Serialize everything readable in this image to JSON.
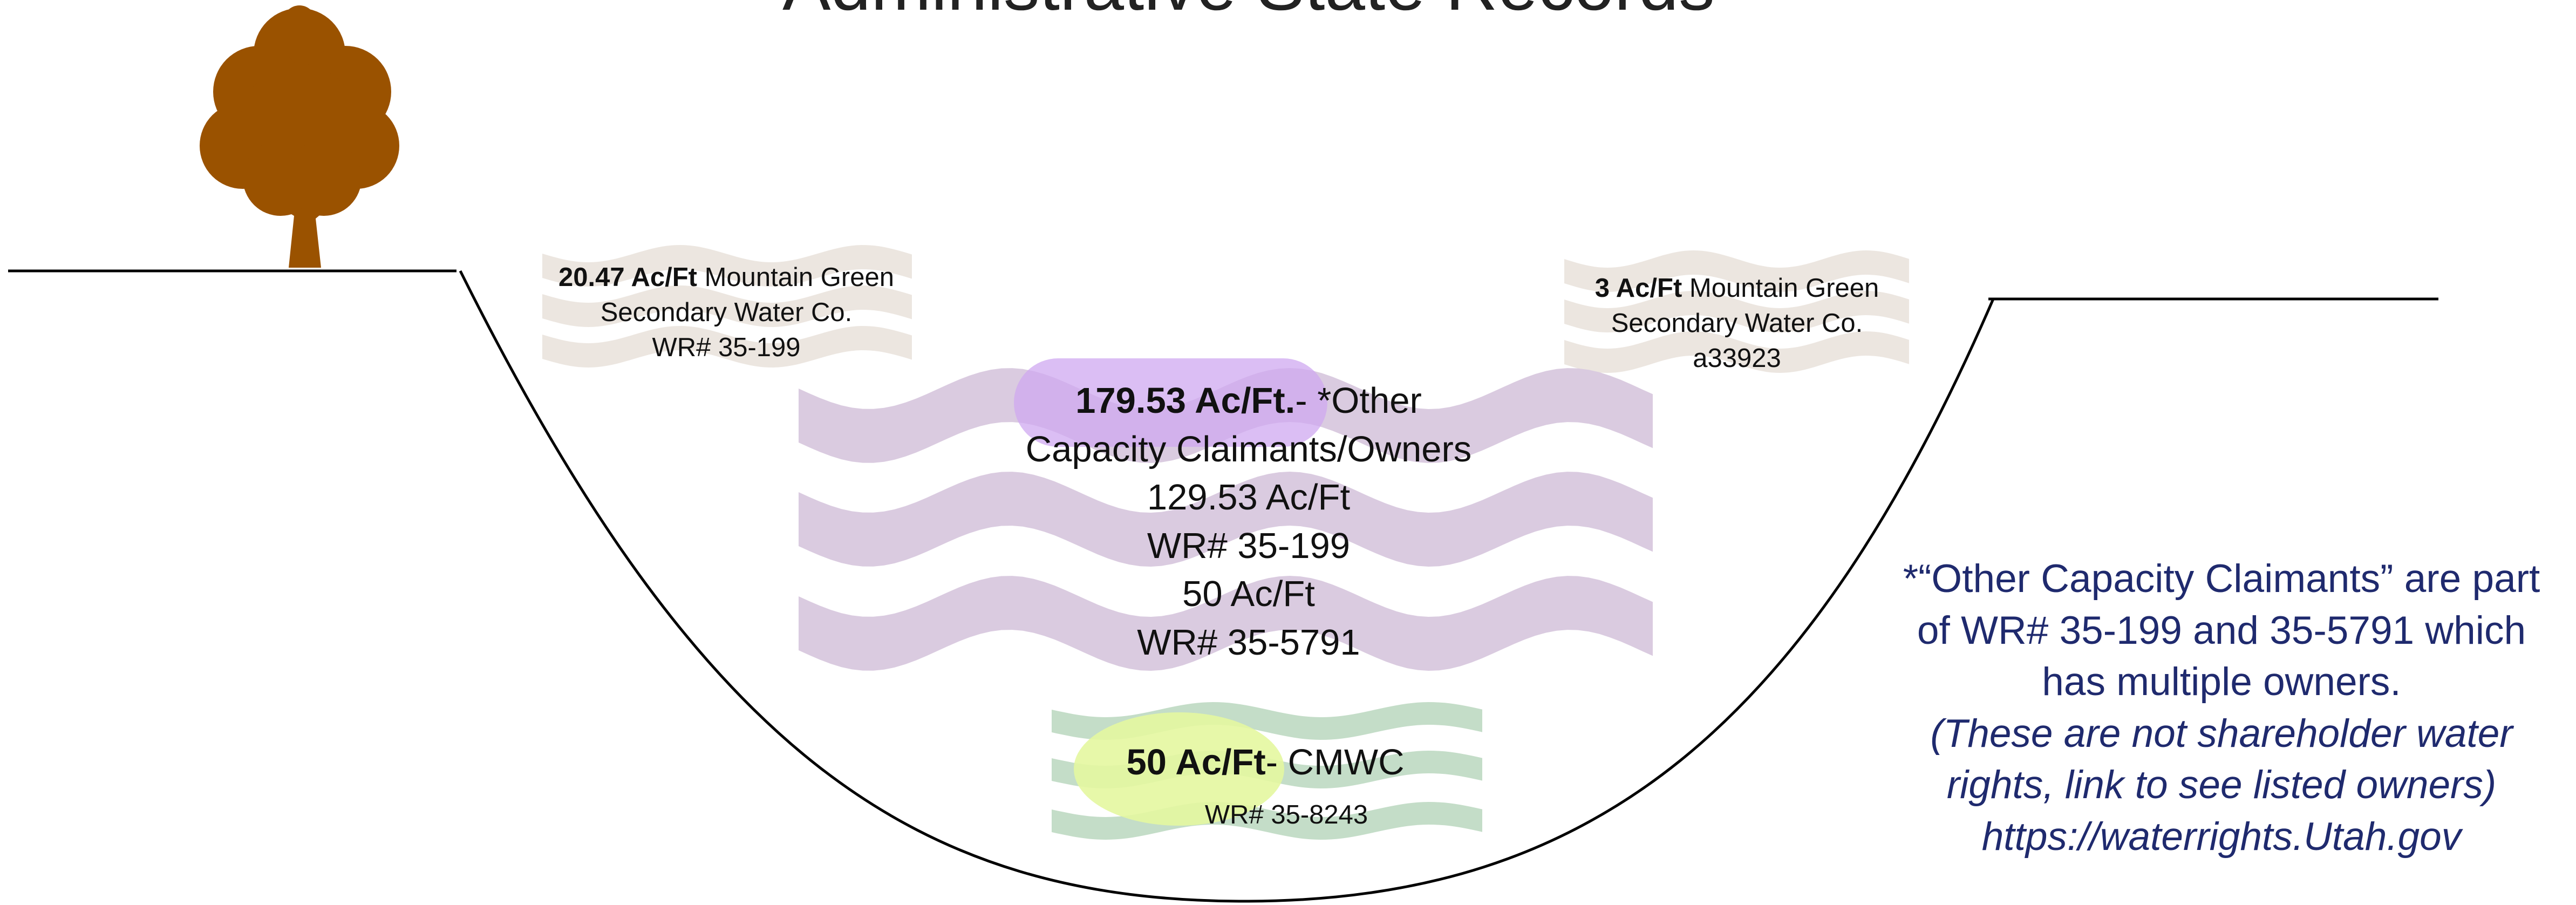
{
  "title": "Administrative State Records",
  "left_label": {
    "amount": "20.47 Ac/Ft",
    "lines": [
      " Mountain Green",
      "Secondary Water Co.",
      "WR# 35-199"
    ]
  },
  "right_label": {
    "amount": "3 Ac/Ft",
    "lines": [
      " Mountain Green",
      "Secondary Water Co.",
      "a33923"
    ]
  },
  "center_label": {
    "amount": "179.53 Ac/Ft.",
    "lines": [
      "- *Other",
      "Capacity Claimants/Owners",
      "129.53 Ac/Ft",
      "WR# 35-199",
      "50 Ac/Ft",
      "WR# 35-5791"
    ]
  },
  "bottom_label": {
    "amount": "50 Ac/Ft",
    "lines": [
      "- CMWC",
      "WR# 35-8243"
    ]
  },
  "note": {
    "lines": [
      "*“Other Capacity Claimants” are part",
      "of WR# 35-199 and 35-5791 which",
      "has multiple owners."
    ],
    "italic_lines": [
      "(These are not shareholder water",
      "rights, link to see listed owners)",
      "https://waterrights.Utah.gov"
    ]
  }
}
